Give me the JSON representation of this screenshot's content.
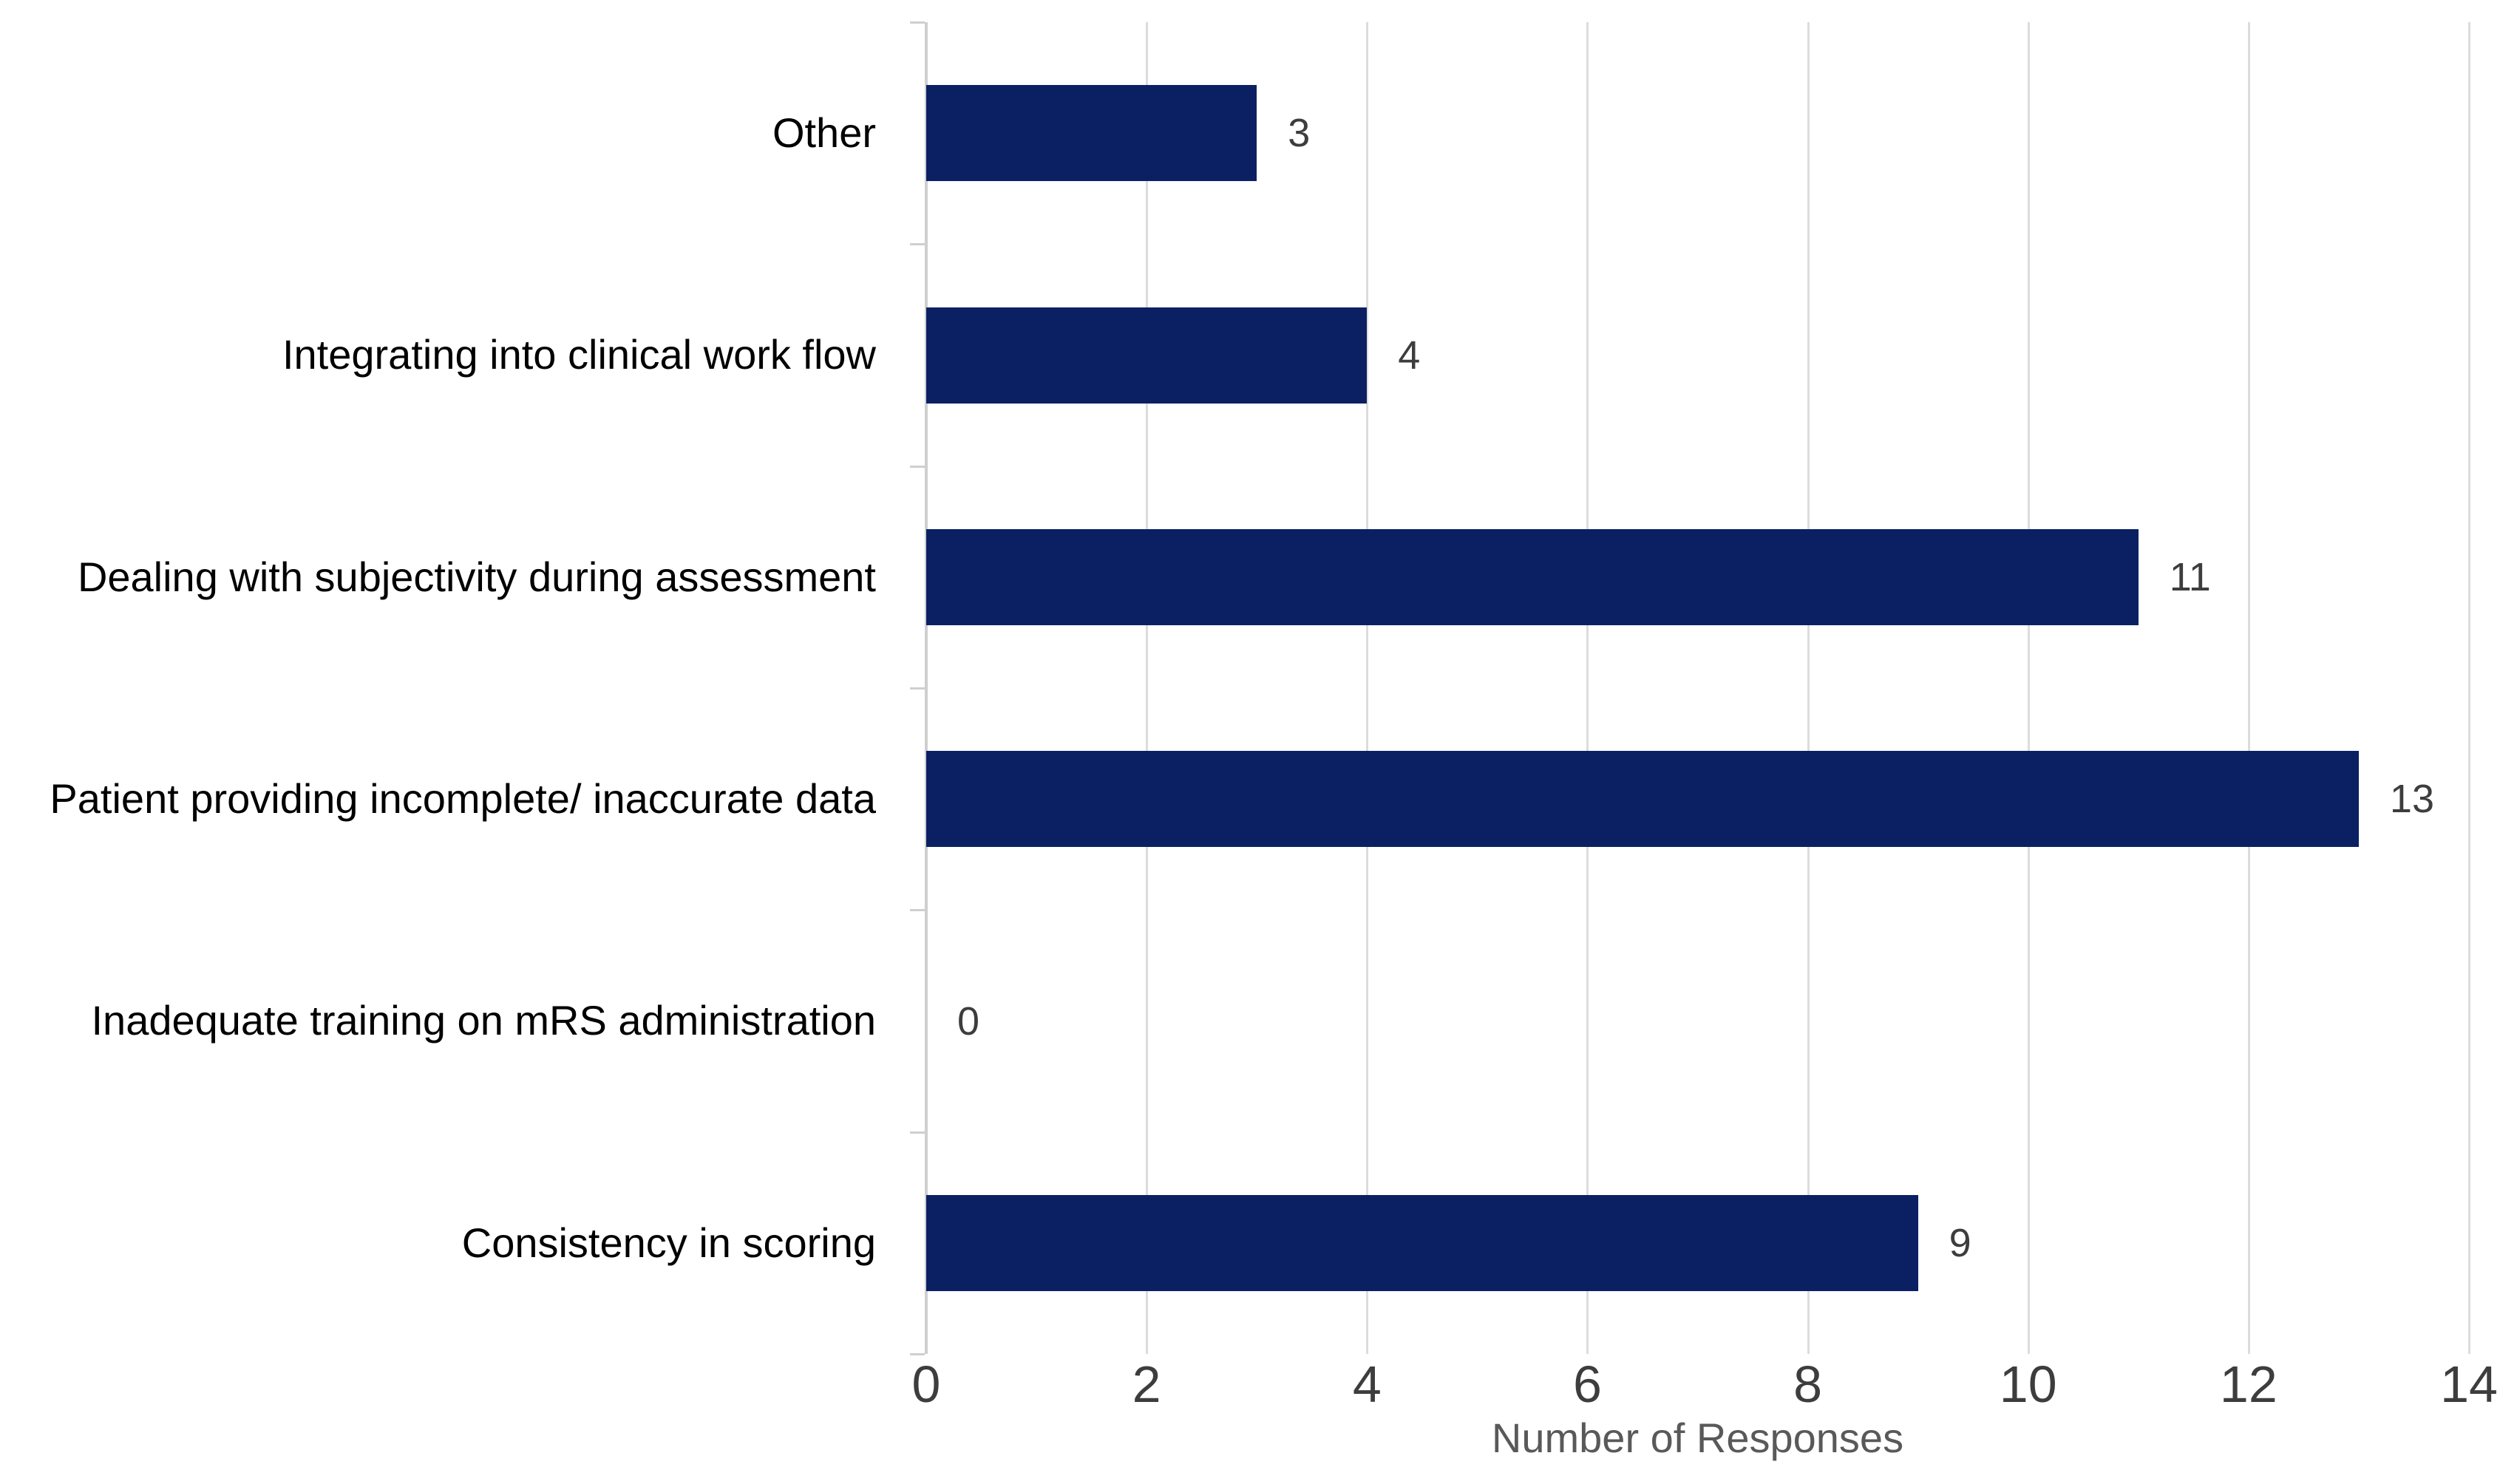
{
  "chart_data": {
    "type": "bar",
    "orientation": "horizontal",
    "title": "",
    "categories": [
      "Other",
      "Integrating into clinical work flow",
      "Dealing with subjectivity during assessment",
      "Patient providing incomplete/ inaccurate data",
      "Inadequate training on mRS administration",
      "Consistency in scoring"
    ],
    "values": [
      3,
      4,
      11,
      13,
      0,
      9
    ],
    "value_labels": [
      "3",
      "4",
      "11",
      "13",
      "0",
      "9"
    ],
    "xlabel": "Number of Responses",
    "ylabel": "",
    "xlim": [
      0,
      14
    ],
    "xticks": [
      0,
      2,
      4,
      6,
      8,
      10,
      12,
      14
    ],
    "grid": "vertical-only",
    "legend": "none",
    "bar_color": "#0a2063",
    "gridline_color": "#dcdcdc",
    "axis_line_color": "#cfcfcf",
    "category_label_color": "#000000",
    "tick_label_color": "#3d3d3d",
    "value_label_color": "#3d3d3d",
    "xlabel_color": "#595959",
    "background_color": "#ffffff"
  }
}
